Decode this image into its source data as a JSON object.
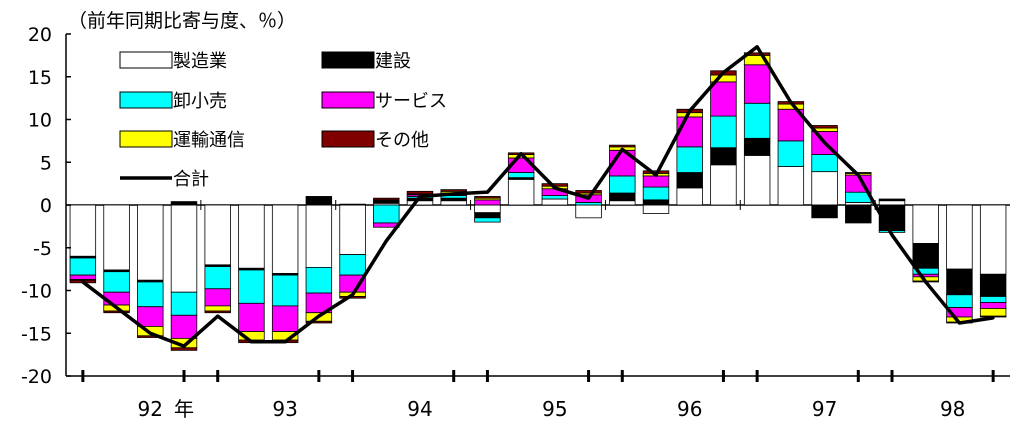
{
  "chart_data": {
    "type": "bar",
    "subtype": "stacked bar with total line",
    "unit_note": "（前年同期比寄与度、％）",
    "ylim": [
      -20,
      20
    ],
    "y_ticks": [
      "20",
      "15",
      "10",
      "5",
      "0",
      "-5",
      "-10",
      "-15",
      "-20"
    ],
    "x_labels": [
      {
        "text": "92",
        "at": 2.5
      },
      {
        "text": "年",
        "at": 3.5
      },
      {
        "text": "93",
        "at": 6.5
      },
      {
        "text": "94",
        "at": 10.5
      },
      {
        "text": "95",
        "at": 14.5
      },
      {
        "text": "96",
        "at": 18.5
      },
      {
        "text": "97",
        "at": 22.5
      },
      {
        "text": "98",
        "at": 26.3
      }
    ],
    "year_boundaries": [
      4,
      8,
      12,
      16,
      20,
      24
    ],
    "legend_placement": "top-left",
    "series": [
      {
        "name": "製造業",
        "color": "#ffffff",
        "values": [
          -6,
          -7.6,
          -8.8,
          -10.2,
          -7,
          -7.4,
          -8,
          -7.3,
          -5.8,
          0.2,
          0.5,
          0.5,
          -0.9,
          3,
          0.7,
          -1.5,
          0.5,
          -1,
          2,
          4.7,
          5.8,
          4.5,
          3.9,
          0.3,
          0.5,
          -4.5,
          -7.5,
          -8.1
        ]
      },
      {
        "name": "建設",
        "color": "#000000",
        "values": [
          -0.2,
          -0.2,
          -0.2,
          0.4,
          -0.2,
          -0.2,
          -0.2,
          1,
          0.1,
          0.4,
          0.3,
          0.3,
          -0.6,
          0.2,
          0,
          0,
          0.9,
          0.6,
          1.8,
          2,
          2,
          0,
          -1.5,
          -2.1,
          -3,
          -2.9,
          -3,
          -2.6
        ]
      },
      {
        "name": "卸小売",
        "color": "#00ffff",
        "values": [
          -2,
          -2.4,
          -2.9,
          -2.7,
          -2.6,
          -3.9,
          -3.6,
          -3,
          -2.4,
          -2.1,
          0.2,
          0.3,
          -0.5,
          0.6,
          0.4,
          0.3,
          2,
          1.5,
          3,
          3.7,
          4.1,
          3,
          2,
          1.2,
          -0.2,
          -0.7,
          -1.5,
          -0.7
        ]
      },
      {
        "name": "サービス",
        "color": "#ff00ff",
        "values": [
          -0.5,
          -1.5,
          -2.3,
          -2.7,
          -2,
          -3.3,
          -3,
          -2.3,
          -2,
          -0.5,
          0.2,
          0.3,
          0.6,
          1.7,
          0.8,
          0.9,
          3,
          1.3,
          3.5,
          4,
          4.5,
          3.7,
          2.7,
          2,
          0.1,
          -0.3,
          -1.1,
          -0.7
        ]
      },
      {
        "name": "運輸通信",
        "color": "#ffff00",
        "values": [
          -0.1,
          -0.7,
          -1.1,
          -1.1,
          -0.6,
          -1,
          -1,
          -1,
          -0.5,
          0,
          0.1,
          0.2,
          0.2,
          0.4,
          0.3,
          0.2,
          0.4,
          0.3,
          0.5,
          0.8,
          1.1,
          0.6,
          0.4,
          0.2,
          0,
          -0.5,
          -0.6,
          -0.9
        ]
      },
      {
        "name": "その他",
        "color": "#800000",
        "values": [
          -0.3,
          -0.2,
          -0.2,
          -0.3,
          -0.2,
          -0.3,
          -0.3,
          -0.2,
          -0.2,
          0.2,
          0.3,
          0.2,
          0.2,
          0.2,
          0.3,
          0.3,
          0.2,
          0.3,
          0.4,
          0.5,
          0.3,
          0.3,
          0.3,
          0.1,
          0.1,
          -0.1,
          -0.1,
          -0.1
        ]
      },
      {
        "name": "合計",
        "color": "#000000",
        "kind": "line",
        "values": [
          -9,
          -12,
          -15,
          -16.5,
          -13,
          -16,
          -16,
          -13,
          -10.5,
          -4.2,
          1,
          1.3,
          1.5,
          6,
          2,
          0.8,
          6.5,
          3.5,
          11,
          15.5,
          18.5,
          12,
          7.3,
          3.5,
          -3.5,
          -9,
          -13.8,
          -13.2
        ]
      }
    ]
  }
}
